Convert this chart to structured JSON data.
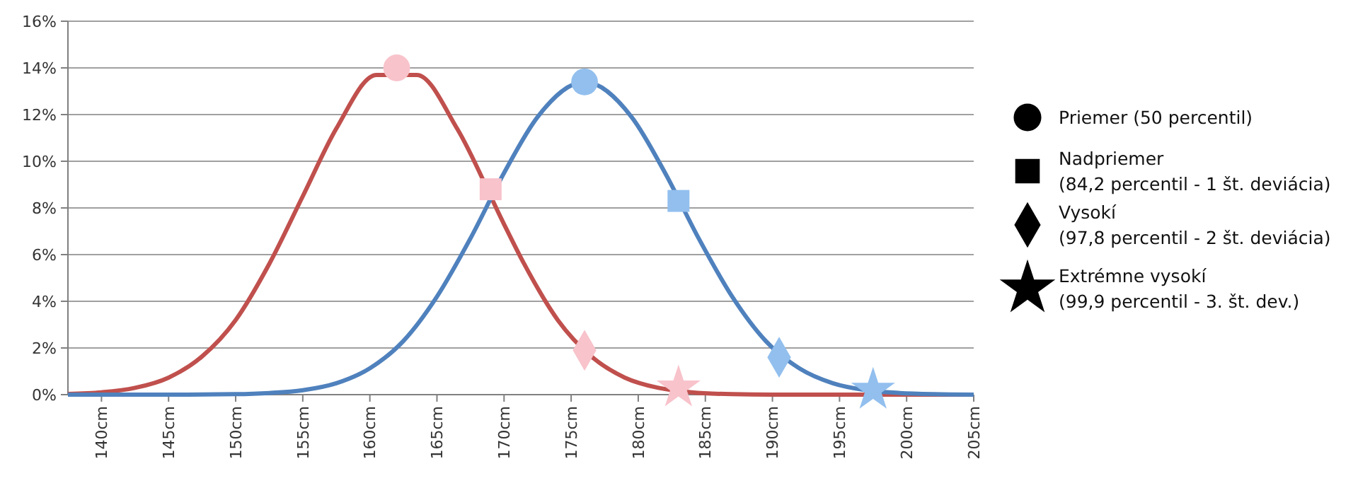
{
  "chart_data": {
    "type": "line",
    "xlim": [
      137.5,
      205
    ],
    "ylim": [
      0,
      16
    ],
    "xticks": [
      {
        "value": 140,
        "label": "140cm"
      },
      {
        "value": 145,
        "label": "145cm"
      },
      {
        "value": 150,
        "label": "150cm"
      },
      {
        "value": 155,
        "label": "155cm"
      },
      {
        "value": 160,
        "label": "160cm"
      },
      {
        "value": 165,
        "label": "165cm"
      },
      {
        "value": 170,
        "label": "170cm"
      },
      {
        "value": 175,
        "label": "175cm"
      },
      {
        "value": 180,
        "label": "180cm"
      },
      {
        "value": 185,
        "label": "185cm"
      },
      {
        "value": 190,
        "label": "190cm"
      },
      {
        "value": 195,
        "label": "195cm"
      },
      {
        "value": 200,
        "label": "200cm"
      },
      {
        "value": 205,
        "label": "205cm"
      }
    ],
    "yticks": [
      {
        "value": 0,
        "label": "0%"
      },
      {
        "value": 2,
        "label": "2%"
      },
      {
        "value": 4,
        "label": "4%"
      },
      {
        "value": 6,
        "label": "6%"
      },
      {
        "value": 8,
        "label": "8%"
      },
      {
        "value": 10,
        "label": "10%"
      },
      {
        "value": 12,
        "label": "12%"
      },
      {
        "value": 14,
        "label": "14%"
      },
      {
        "value": 16,
        "label": "16%"
      }
    ],
    "grid": "y",
    "marker": "none",
    "line_style": "solid",
    "series": [
      {
        "color": "#c0504d",
        "x": [
          137.5,
          140,
          142.5,
          145,
          147.5,
          150,
          152.5,
          155,
          157.5,
          160.5,
          163.5,
          166.5,
          170,
          171.5,
          174,
          176.5,
          179,
          181.5,
          184,
          187,
          190,
          195,
          200,
          205
        ],
        "values": [
          0.03,
          0.1,
          0.29,
          0.73,
          1.64,
          3.2,
          5.6,
          8.5,
          11.4,
          13.7,
          13.7,
          11.4,
          7.3,
          5.6,
          3.2,
          1.64,
          0.73,
          0.29,
          0.1,
          0.02,
          0,
          0,
          0,
          0
        ]
      },
      {
        "color": "#4f81bd",
        "x": [
          137.5,
          145,
          150,
          152.5,
          155,
          157.5,
          160,
          162.5,
          165,
          167.5,
          170,
          172.5,
          176,
          179.5,
          182,
          184.5,
          187,
          189.5,
          192,
          194.5,
          197,
          199.5,
          202,
          205
        ],
        "values": [
          0,
          0,
          0.02,
          0.07,
          0.19,
          0.49,
          1.13,
          2.3,
          4.2,
          6.7,
          9.5,
          11.9,
          13.4,
          11.9,
          9.5,
          6.7,
          4.2,
          2.3,
          1.13,
          0.49,
          0.19,
          0.07,
          0.02,
          0
        ]
      },
      {
        "type": "scatter",
        "marker": "circle",
        "x": [
          162,
          176
        ],
        "values": [
          14,
          13.4
        ],
        "colors": [
          "#f8c3cb",
          "#92bfee"
        ]
      },
      {
        "type": "scatter",
        "marker": "square",
        "x": [
          169,
          183
        ],
        "values": [
          8.8,
          8.3
        ],
        "colors": [
          "#f8c3cb",
          "#92bfee"
        ]
      },
      {
        "type": "scatter",
        "marker": "diamond",
        "x": [
          176,
          190.5
        ],
        "values": [
          1.9,
          1.6
        ],
        "colors": [
          "#f8c3cb",
          "#92bfee"
        ]
      },
      {
        "type": "scatter",
        "marker": "star",
        "x": [
          183,
          197.5
        ],
        "values": [
          0.3,
          0.2
        ],
        "colors": [
          "#f8c3cb",
          "#92bfee"
        ]
      }
    ],
    "annotations": [
      "Priemer (50 percentil)",
      "Nadpriemer\n(84,2 percentil - 1 št. deviácia)",
      "Vysokí\n(97,8 percentil - 2 št. deviácia)",
      "Extrémne vysokí\n(99,9 percentil - 3. št. dev.)"
    ]
  }
}
